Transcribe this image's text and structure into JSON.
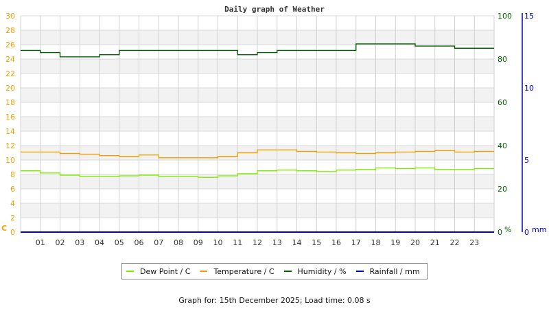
{
  "chart_data": {
    "type": "line",
    "title": "Daily graph of Weather",
    "xlabel": "",
    "x_ticks": [
      "01",
      "02",
      "03",
      "04",
      "05",
      "06",
      "07",
      "08",
      "09",
      "10",
      "11",
      "12",
      "13",
      "14",
      "15",
      "16",
      "17",
      "18",
      "19",
      "20",
      "21",
      "22",
      "23"
    ],
    "axes": {
      "left": {
        "label": "C",
        "range": [
          0,
          30
        ],
        "ticks": [
          0,
          2,
          4,
          6,
          8,
          10,
          12,
          14,
          16,
          18,
          20,
          22,
          24,
          26,
          28,
          30
        ],
        "color": "#f0a000"
      },
      "right_humidity": {
        "label": "%",
        "range": [
          0,
          100
        ],
        "ticks": [
          0,
          20,
          40,
          60,
          80,
          100
        ],
        "color": "#006000"
      },
      "right_rain": {
        "label": "mm",
        "range": [
          0,
          15
        ],
        "ticks": [
          0,
          5,
          10,
          15
        ],
        "color": "#0000c0"
      }
    },
    "grid": true,
    "legend_position": "bottom",
    "x_hours": [
      0,
      1,
      2,
      3,
      4,
      5,
      6,
      7,
      8,
      9,
      10,
      11,
      12,
      13,
      14,
      15,
      16,
      17,
      18,
      19,
      20,
      21,
      22,
      23,
      24
    ],
    "series": [
      {
        "name": "Dew Point / C",
        "color": "#80ee00",
        "axis": "left",
        "values": [
          8.5,
          8.2,
          7.9,
          7.7,
          7.7,
          7.8,
          7.9,
          7.7,
          7.7,
          7.6,
          7.8,
          8.1,
          8.5,
          8.6,
          8.5,
          8.4,
          8.6,
          8.7,
          8.9,
          8.8,
          8.9,
          8.7,
          8.7,
          8.8,
          8.8
        ]
      },
      {
        "name": "Temperature / C",
        "color": "#f0a000",
        "axis": "left",
        "values": [
          11.1,
          11.1,
          10.9,
          10.8,
          10.6,
          10.5,
          10.7,
          10.3,
          10.3,
          10.3,
          10.5,
          11.0,
          11.4,
          11.4,
          11.2,
          11.1,
          11.0,
          10.9,
          11.0,
          11.1,
          11.2,
          11.3,
          11.1,
          11.2,
          11.2
        ]
      },
      {
        "name": "Humidity / %",
        "color": "#006000",
        "axis": "right_humidity",
        "values": [
          84,
          83,
          81,
          81,
          82,
          84,
          84,
          84,
          84,
          84,
          84,
          82,
          83,
          84,
          84,
          84,
          84,
          87,
          87,
          87,
          86,
          86,
          85,
          85,
          85
        ]
      },
      {
        "name": "Rainfall / mm",
        "color": "#0000c0",
        "axis": "right_rain",
        "values": [
          0,
          0,
          0,
          0,
          0,
          0,
          0,
          0,
          0,
          0,
          0,
          0,
          0,
          0,
          0,
          0,
          0,
          0,
          0,
          0,
          0,
          0,
          0,
          0,
          0
        ]
      }
    ]
  },
  "legend": {
    "items": [
      {
        "label": "Dew Point / C",
        "color": "#80ee00"
      },
      {
        "label": "Temperature / C",
        "color": "#f0a000"
      },
      {
        "label": "Humidity / %",
        "color": "#006000"
      },
      {
        "label": "Rainfall / mm",
        "color": "#0000c0"
      }
    ]
  },
  "footer": {
    "text": "Graph for: 15th December 2025; Load time: 0.08 s"
  }
}
